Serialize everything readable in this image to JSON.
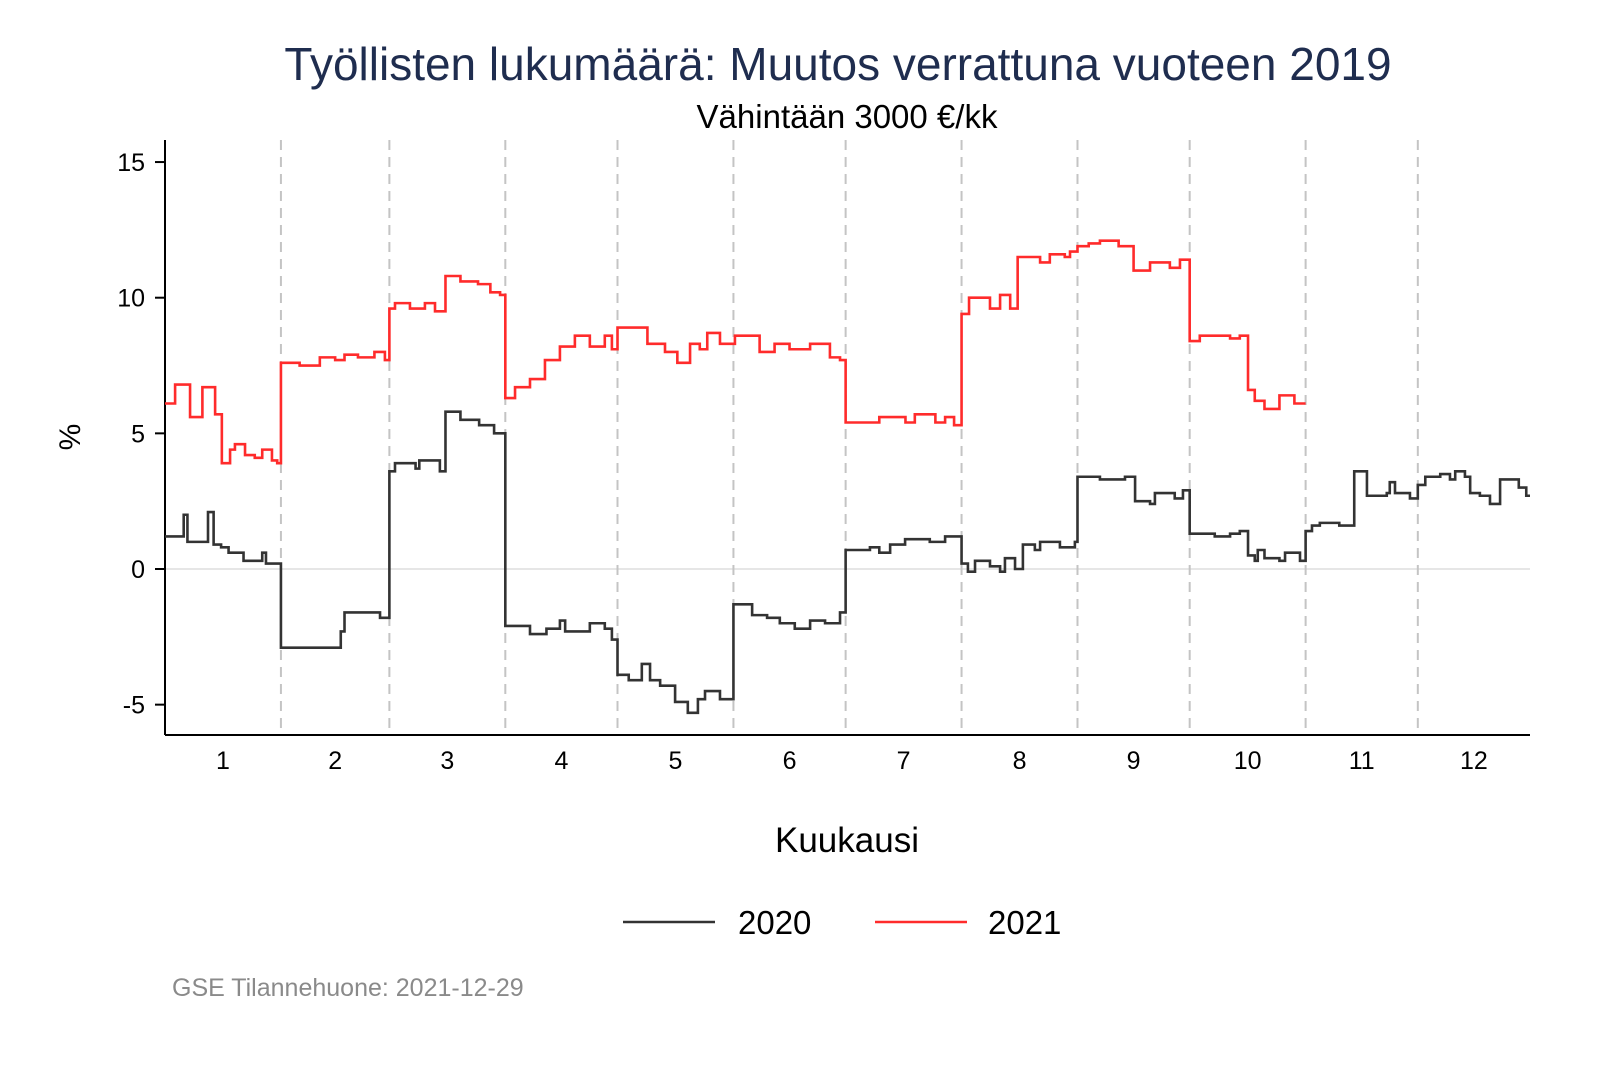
{
  "chart_data": {
    "type": "line",
    "step": true,
    "title": "Työllisten lukumäärä: Muutos verrattuna vuoteen 2019",
    "subtitle": "Vähintään 3000 €/kk",
    "xlabel": "Kuukausi",
    "ylabel": "%",
    "xlim": [
      0,
      365
    ],
    "ylim": [
      -6,
      15.8
    ],
    "yticks": [
      15,
      10,
      5,
      0,
      -5
    ],
    "ytick_labels": [
      "15",
      "10",
      "5",
      "0",
      "-5"
    ],
    "month_boundaries": [
      31,
      60,
      91,
      121,
      152,
      182,
      213,
      244,
      274,
      305,
      335
    ],
    "month_labels": [
      "1",
      "2",
      "3",
      "4",
      "5",
      "6",
      "7",
      "8",
      "9",
      "10",
      "11",
      "12"
    ],
    "legend_position": "bottom",
    "note": "GSE Tilannehuone: 2021-12-29",
    "series": [
      {
        "name": "2020",
        "color": "#333333",
        "points": [
          [
            0,
            1.2
          ],
          [
            5,
            2.0
          ],
          [
            6,
            1.0
          ],
          [
            11.5,
            2.1
          ],
          [
            13,
            0.9
          ],
          [
            15,
            0.8
          ],
          [
            17,
            0.6
          ],
          [
            21,
            0.3
          ],
          [
            26,
            0.6
          ],
          [
            27,
            0.2
          ],
          [
            31,
            -2.9
          ],
          [
            47,
            -2.3
          ],
          [
            48,
            -1.6
          ],
          [
            57.5,
            -1.8
          ],
          [
            60,
            3.6
          ],
          [
            61.5,
            3.9
          ],
          [
            67,
            3.7
          ],
          [
            68,
            4.0
          ],
          [
            73.5,
            3.6
          ],
          [
            75,
            5.8
          ],
          [
            79,
            5.5
          ],
          [
            84,
            5.3
          ],
          [
            88,
            5.0
          ],
          [
            91,
            -2.1
          ],
          [
            97.6,
            -2.4
          ],
          [
            102,
            -2.2
          ],
          [
            105.6,
            -1.9
          ],
          [
            107,
            -2.3
          ],
          [
            113.6,
            -2.0
          ],
          [
            117.6,
            -2.2
          ],
          [
            119.5,
            -2.6
          ],
          [
            121,
            -3.9
          ],
          [
            124,
            -4.1
          ],
          [
            127.5,
            -3.5
          ],
          [
            129.7,
            -4.1
          ],
          [
            132.4,
            -4.3
          ],
          [
            136.4,
            -4.9
          ],
          [
            139.8,
            -5.3
          ],
          [
            142.5,
            -4.8
          ],
          [
            144.4,
            -4.5
          ],
          [
            148.4,
            -4.8
          ],
          [
            152,
            -1.3
          ],
          [
            157,
            -1.7
          ],
          [
            161,
            -1.8
          ],
          [
            164.4,
            -2.0
          ],
          [
            168.4,
            -2.2
          ],
          [
            172.5,
            -1.9
          ],
          [
            176.5,
            -2.0
          ],
          [
            180.5,
            -1.6
          ],
          [
            182,
            0.7
          ],
          [
            188.5,
            0.8
          ],
          [
            191,
            0.6
          ],
          [
            193.9,
            0.9
          ],
          [
            197.9,
            1.1
          ],
          [
            204.5,
            1.0
          ],
          [
            208.6,
            1.2
          ],
          [
            213,
            0.2
          ],
          [
            214.7,
            -0.1
          ],
          [
            216.6,
            0.3
          ],
          [
            220.6,
            0.1
          ],
          [
            223.3,
            -0.1
          ],
          [
            224.6,
            0.4
          ],
          [
            227.3,
            0.0
          ],
          [
            229.4,
            0.9
          ],
          [
            232.6,
            0.7
          ],
          [
            234,
            1.0
          ],
          [
            239.3,
            0.8
          ],
          [
            243.3,
            1.0
          ],
          [
            244,
            3.4
          ],
          [
            250,
            3.3
          ],
          [
            256.7,
            3.4
          ],
          [
            259.4,
            2.5
          ],
          [
            263.4,
            2.4
          ],
          [
            264.7,
            2.8
          ],
          [
            270,
            2.6
          ],
          [
            272.2,
            2.9
          ],
          [
            274,
            1.3
          ],
          [
            280.7,
            1.2
          ],
          [
            284.8,
            1.3
          ],
          [
            287.4,
            1.4
          ],
          [
            289.6,
            0.5
          ],
          [
            291.4,
            0.3
          ],
          [
            292.2,
            0.7
          ],
          [
            294,
            0.4
          ],
          [
            298,
            0.3
          ],
          [
            299.5,
            0.6
          ],
          [
            303.5,
            0.3
          ],
          [
            305,
            1.4
          ],
          [
            306.7,
            1.6
          ],
          [
            308.8,
            1.7
          ],
          [
            314,
            1.6
          ],
          [
            318,
            3.6
          ],
          [
            321.4,
            2.7
          ],
          [
            326.7,
            2.8
          ],
          [
            327.5,
            3.2
          ],
          [
            328.9,
            2.8
          ],
          [
            332.9,
            2.6
          ],
          [
            335,
            3.1
          ],
          [
            337,
            3.4
          ],
          [
            341,
            3.5
          ],
          [
            343.6,
            3.3
          ],
          [
            345,
            3.6
          ],
          [
            347.6,
            3.4
          ],
          [
            349,
            2.8
          ],
          [
            351.6,
            2.7
          ],
          [
            354.3,
            2.4
          ],
          [
            357,
            3.3
          ],
          [
            362,
            3.0
          ],
          [
            364,
            2.7
          ],
          [
            365,
            2.7
          ]
        ]
      },
      {
        "name": "2021",
        "color": "#ff2b2b",
        "points": [
          [
            0,
            6.1
          ],
          [
            2.7,
            6.8
          ],
          [
            6.7,
            5.6
          ],
          [
            10,
            6.7
          ],
          [
            13.4,
            5.7
          ],
          [
            15.2,
            3.9
          ],
          [
            17.4,
            4.4
          ],
          [
            18.7,
            4.6
          ],
          [
            21.4,
            4.2
          ],
          [
            24,
            4.1
          ],
          [
            26,
            4.4
          ],
          [
            28.6,
            4.0
          ],
          [
            30,
            3.9
          ],
          [
            31,
            7.6
          ],
          [
            36,
            7.5
          ],
          [
            41.4,
            7.8
          ],
          [
            45.5,
            7.7
          ],
          [
            48,
            7.9
          ],
          [
            51.6,
            7.8
          ],
          [
            56,
            8.0
          ],
          [
            58.8,
            7.7
          ],
          [
            60,
            9.6
          ],
          [
            61.5,
            9.8
          ],
          [
            65.5,
            9.6
          ],
          [
            69.5,
            9.8
          ],
          [
            72.2,
            9.5
          ],
          [
            75,
            10.8
          ],
          [
            79,
            10.6
          ],
          [
            83.7,
            10.5
          ],
          [
            87,
            10.2
          ],
          [
            89.6,
            10.1
          ],
          [
            91,
            6.3
          ],
          [
            93.6,
            6.7
          ],
          [
            97.6,
            7.0
          ],
          [
            101.6,
            7.7
          ],
          [
            105.6,
            8.2
          ],
          [
            109.6,
            8.6
          ],
          [
            113.6,
            8.2
          ],
          [
            117.6,
            8.6
          ],
          [
            119.5,
            8.1
          ],
          [
            121,
            8.9
          ],
          [
            129,
            8.3
          ],
          [
            133.7,
            8.0
          ],
          [
            137,
            7.6
          ],
          [
            140.4,
            8.3
          ],
          [
            143,
            8.1
          ],
          [
            145,
            8.7
          ],
          [
            148.4,
            8.3
          ],
          [
            152.4,
            8.6
          ],
          [
            159,
            8.0
          ],
          [
            163,
            8.3
          ],
          [
            167,
            8.1
          ],
          [
            172.5,
            8.3
          ],
          [
            177.8,
            7.8
          ],
          [
            180.5,
            7.7
          ],
          [
            182,
            5.4
          ],
          [
            191,
            5.6
          ],
          [
            198,
            5.4
          ],
          [
            200.5,
            5.7
          ],
          [
            206,
            5.4
          ],
          [
            208.6,
            5.6
          ],
          [
            211,
            5.3
          ],
          [
            213,
            9.4
          ],
          [
            215,
            10.0
          ],
          [
            220.6,
            9.6
          ],
          [
            223.3,
            10.1
          ],
          [
            226,
            9.6
          ],
          [
            228,
            11.5
          ],
          [
            234,
            11.3
          ],
          [
            236.6,
            11.6
          ],
          [
            240.6,
            11.5
          ],
          [
            242,
            11.7
          ],
          [
            244,
            11.9
          ],
          [
            247,
            12.0
          ],
          [
            250,
            12.1
          ],
          [
            255,
            11.9
          ],
          [
            259,
            11.0
          ],
          [
            263.4,
            11.3
          ],
          [
            268.7,
            11.1
          ],
          [
            271.4,
            11.4
          ],
          [
            274,
            8.4
          ],
          [
            276.7,
            8.6
          ],
          [
            284.8,
            8.5
          ],
          [
            287.4,
            8.6
          ],
          [
            289.6,
            6.6
          ],
          [
            291.4,
            6.2
          ],
          [
            294,
            5.9
          ],
          [
            298,
            6.4
          ],
          [
            302,
            6.1
          ],
          [
            305,
            6.1
          ]
        ]
      }
    ]
  },
  "colors": {
    "title": "#1f2d4f",
    "note": "#8a8a8a",
    "grid": "#e6e6e6",
    "month_line": "#c4c4c4"
  }
}
